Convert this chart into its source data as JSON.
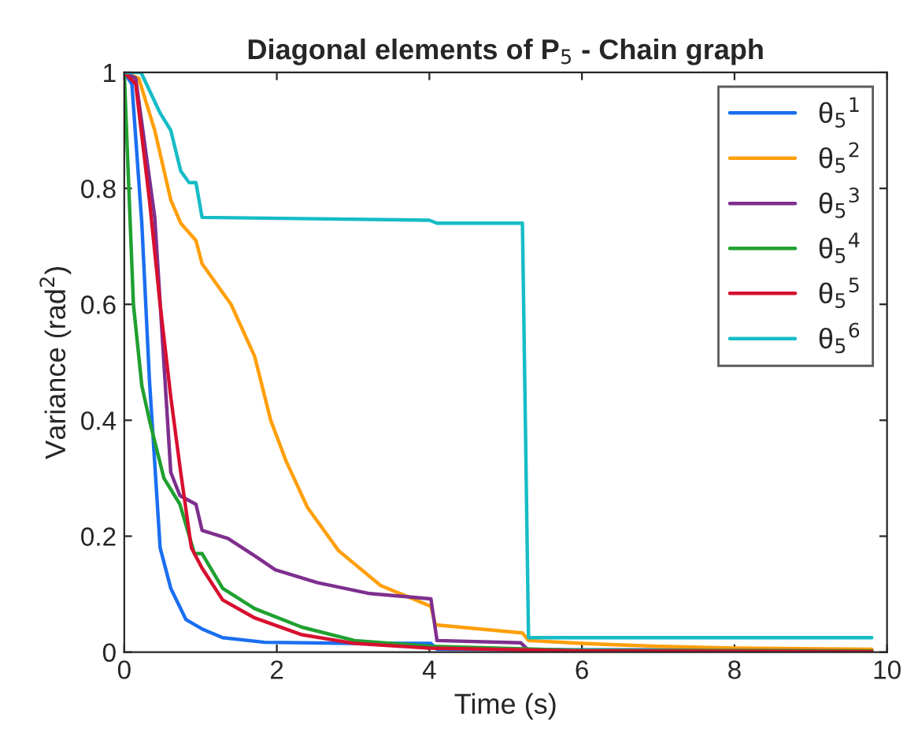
{
  "chart_data": {
    "type": "line",
    "title": "Diagonal elements of P$_{5}$ - Chain graph",
    "xlabel": "Time (s)",
    "ylabel": "Variance (rad$^{2}$)",
    "xlim": [
      0,
      10
    ],
    "ylim": [
      0,
      1
    ],
    "xticks": [
      0,
      2,
      4,
      6,
      8,
      10
    ],
    "yticks": [
      0,
      0.2,
      0.4,
      0.6,
      0.8,
      1
    ],
    "grid": false,
    "legend": "top right",
    "line_style": "solid",
    "marker": "none",
    "series": [
      {
        "name": "θ$_{5}$$^{1}$",
        "color": "#1a6ff0",
        "x": [
          0,
          0.1,
          0.23,
          0.33,
          0.47,
          0.61,
          0.81,
          1.02,
          1.29,
          1.84,
          3.0,
          4.02,
          4.1,
          6,
          9.8
        ],
        "values": [
          1,
          0.98,
          0.74,
          0.47,
          0.18,
          0.11,
          0.056,
          0.04,
          0.025,
          0.017,
          0.015,
          0.015,
          0.005,
          0.004,
          0.004
        ]
      },
      {
        "name": "θ$_{5}$$^{2}$",
        "color": "#ff9f0a",
        "x": [
          0,
          0.19,
          0.4,
          0.61,
          0.74,
          0.94,
          1.02,
          1.4,
          1.71,
          1.92,
          2.12,
          2.4,
          2.81,
          3.36,
          4.02,
          4.08,
          5.22,
          5.3,
          6,
          7,
          8,
          9.8
        ],
        "values": [
          1,
          0.99,
          0.9,
          0.78,
          0.74,
          0.71,
          0.67,
          0.6,
          0.51,
          0.4,
          0.33,
          0.25,
          0.175,
          0.115,
          0.079,
          0.047,
          0.033,
          0.02,
          0.015,
          0.01,
          0.007,
          0.005
        ]
      },
      {
        "name": "θ$_{5}$$^{3}$",
        "color": "#7e2f8e",
        "x": [
          0,
          0.15,
          0.4,
          0.61,
          0.73,
          0.94,
          1.02,
          1.36,
          1.71,
          1.98,
          2.53,
          3.22,
          4.02,
          4.1,
          5.2,
          5.3,
          9.8
        ],
        "values": [
          1,
          0.99,
          0.75,
          0.31,
          0.27,
          0.255,
          0.21,
          0.196,
          0.166,
          0.142,
          0.12,
          0.101,
          0.092,
          0.02,
          0.016,
          0.003,
          0.002
        ]
      },
      {
        "name": "θ$_{5}$$^{4}$",
        "color": "#20a030",
        "x": [
          0,
          0.12,
          0.23,
          0.33,
          0.52,
          0.73,
          0.92,
          1.02,
          1.29,
          1.71,
          2.33,
          3.02,
          4.02,
          6,
          9.8
        ],
        "values": [
          1,
          0.6,
          0.46,
          0.4,
          0.3,
          0.255,
          0.17,
          0.17,
          0.11,
          0.075,
          0.043,
          0.02,
          0.01,
          0.003,
          0.002
        ]
      },
      {
        "name": "θ$_{5}$$^{5}$",
        "color": "#d7102f",
        "x": [
          0,
          0.15,
          0.33,
          0.47,
          0.61,
          0.74,
          0.88,
          1.02,
          1.29,
          1.71,
          2.33,
          3.02,
          4.0,
          6,
          9.8
        ],
        "values": [
          1,
          0.98,
          0.78,
          0.6,
          0.44,
          0.31,
          0.18,
          0.145,
          0.09,
          0.059,
          0.03,
          0.015,
          0.007,
          0.002,
          0.001
        ]
      },
      {
        "name": "θ$_{5}$$^{6}$",
        "color": "#17bcc6",
        "x": [
          0,
          0.22,
          0.47,
          0.61,
          0.74,
          0.85,
          0.94,
          1.02,
          4.0,
          4.1,
          5.22,
          5.3,
          9.8
        ],
        "values": [
          1,
          1,
          0.93,
          0.9,
          0.83,
          0.81,
          0.81,
          0.75,
          0.745,
          0.74,
          0.74,
          0.025,
          0.025
        ]
      }
    ]
  }
}
